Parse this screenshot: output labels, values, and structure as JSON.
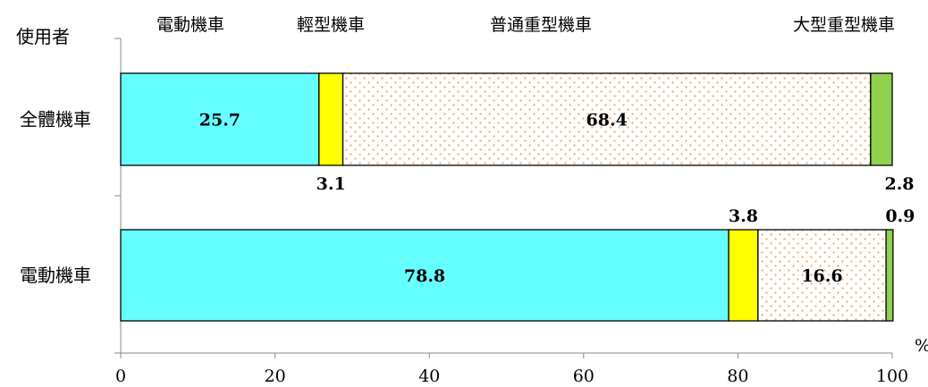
{
  "chart_data": {
    "type": "bar",
    "orientation": "horizontal",
    "stacked": true,
    "y_axis_title": "使用者",
    "x_unit": "%",
    "xlim": [
      0,
      100
    ],
    "x_ticks": [
      "0",
      "20",
      "40",
      "60",
      "80",
      "100"
    ],
    "x_tick_values": [
      0,
      20,
      40,
      60,
      80,
      100
    ],
    "categories": [
      "全體機車",
      "電動機車"
    ],
    "series": [
      {
        "name": "電動機車",
        "values": [
          25.7,
          78.8
        ],
        "labels": [
          "25.7",
          "78.8"
        ],
        "color": "#66FFFF",
        "pattern": "none"
      },
      {
        "name": "輕型機車",
        "values": [
          3.1,
          3.8
        ],
        "labels": [
          "3.1",
          "3.8"
        ],
        "color": "#FFFF00",
        "pattern": "none"
      },
      {
        "name": "普通重型機車",
        "values": [
          68.4,
          16.6
        ],
        "labels": [
          "68.4",
          "16.6"
        ],
        "color": "#FFFFFF",
        "pattern": "dots",
        "dot_color": "#F4A460"
      },
      {
        "name": "大型重型機車",
        "values": [
          2.8,
          0.9
        ],
        "labels": [
          "2.8",
          "0.9"
        ],
        "color": "#92D050",
        "pattern": "none"
      }
    ],
    "grid": false,
    "legend": "top"
  }
}
